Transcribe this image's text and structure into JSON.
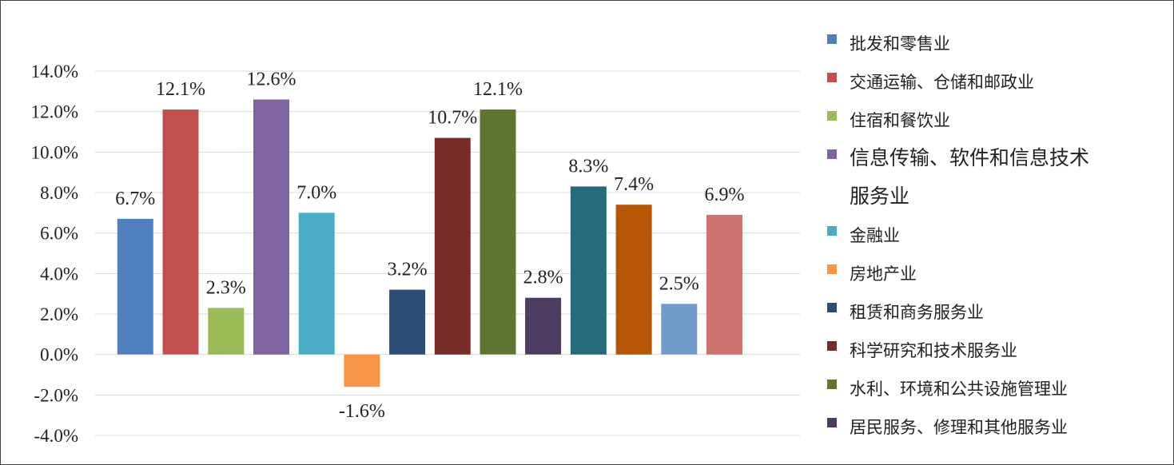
{
  "chart_data": {
    "type": "bar",
    "title": "",
    "xlabel": "",
    "ylabel": "",
    "ylim": [
      -4.0,
      14.0
    ],
    "ytick_step": 2.0,
    "y_tick_labels": [
      "-4.0%",
      "-2.0%",
      "0.0%",
      "2.0%",
      "4.0%",
      "6.0%",
      "8.0%",
      "10.0%",
      "12.0%",
      "14.0%"
    ],
    "grid": true,
    "legend_position": "right",
    "categories": [
      "批发和零售业",
      "交通运输、仓储和邮政业",
      "住宿和餐饮业",
      "信息传输、软件和信息技术服务业",
      "金融业",
      "房地产业",
      "租赁和商务服务业",
      "科学研究和技术服务业",
      "水利、环境和公共设施管理业",
      "居民服务、修理和其他服务业",
      "",
      "",
      "",
      ""
    ],
    "values": [
      6.7,
      12.1,
      2.3,
      12.6,
      7.0,
      -1.6,
      3.2,
      10.7,
      12.1,
      2.8,
      8.3,
      7.4,
      2.5,
      6.9
    ],
    "value_labels": [
      "6.7%",
      "12.1%",
      "2.3%",
      "12.6%",
      "7.0%",
      "-1.6%",
      "3.2%",
      "10.7%",
      "12.1%",
      "2.8%",
      "8.3%",
      "7.4%",
      "2.5%",
      "6.9%"
    ],
    "colors": [
      "#4f7fbd",
      "#c0504d",
      "#9bbb59",
      "#8064a2",
      "#4bacc6",
      "#f79646",
      "#2c4d75",
      "#772c2a",
      "#5f7530",
      "#4d3b62",
      "#276a7c",
      "#b65708",
      "#729aca",
      "#cd7371"
    ],
    "legend": [
      {
        "lines": [
          "批发和零售业"
        ]
      },
      {
        "lines": [
          "交通运输、仓储和邮政业"
        ]
      },
      {
        "lines": [
          "住宿和餐饮业"
        ]
      },
      {
        "lines": [
          "信息传输、软件和信息技术",
          "服务业"
        ]
      },
      {
        "lines": [
          "金融业"
        ]
      },
      {
        "lines": [
          "房地产业"
        ]
      },
      {
        "lines": [
          "租赁和商务服务业"
        ]
      },
      {
        "lines": [
          "科学研究和技术服务业"
        ]
      },
      {
        "lines": [
          "水利、环境和公共设施管理业"
        ]
      },
      {
        "lines": [
          "居民服务、修理和其他服务业"
        ]
      }
    ]
  }
}
